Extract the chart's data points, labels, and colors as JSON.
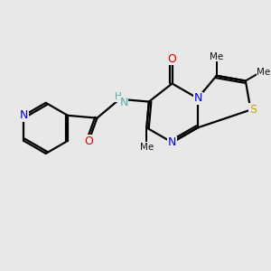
{
  "background_color": "#e8e8e8",
  "fig_size": [
    3.0,
    3.0
  ],
  "dpi": 100,
  "atom_colors": {
    "N_pyridine": "#0000ee",
    "N_amide": "#55aaaa",
    "N_ring": "#0000ee",
    "O": "#dd0000",
    "S": "#bbaa00",
    "C": "#000000"
  },
  "bond_color": "#000000",
  "bond_width": 1.6,
  "xlim": [
    -3.0,
    3.5
  ],
  "ylim": [
    -2.2,
    2.2
  ],
  "BL": 0.72
}
